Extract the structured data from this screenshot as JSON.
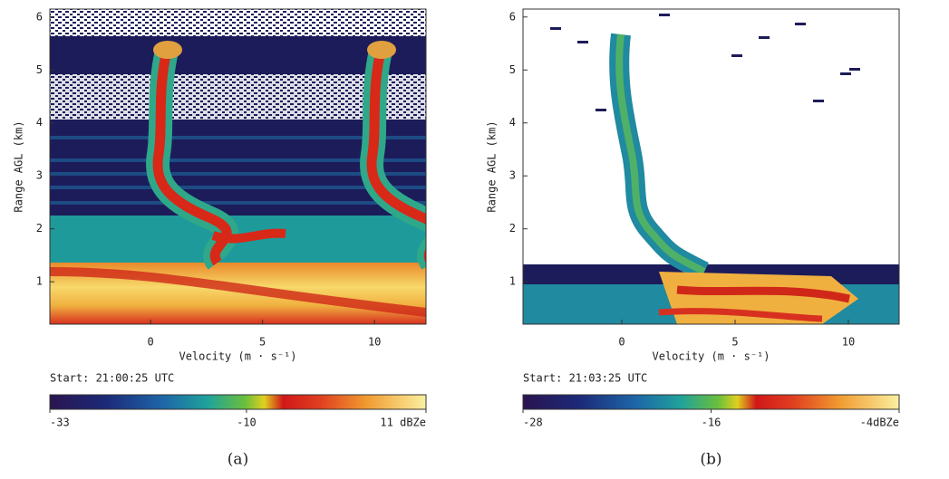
{
  "chart_data": [
    {
      "type": "spectrogram",
      "xlabel": "Velocity (m · s⁻¹)",
      "ylabel": "Range AGL (km)",
      "xlim": [
        -4.5,
        12.3
      ],
      "xticks": [
        0,
        5,
        10
      ],
      "ylim": [
        0.2,
        6.15
      ],
      "yticks": [
        1,
        2,
        3,
        4,
        5,
        6
      ],
      "start": "Start: 21:00:25 UTC",
      "colorbar": {
        "lim": [
          -33,
          11
        ],
        "ticks": [
          -33,
          -10,
          {
            "value": 11,
            "label": "11 dBZe"
          }
        ]
      },
      "caption": "(a)"
    },
    {
      "type": "spectrogram",
      "xlabel": "Velocity (m · s⁻¹)",
      "ylabel": "Range AGL (km)",
      "xlim": [
        -4.36,
        12.24
      ],
      "xticks": [
        0,
        5,
        10
      ],
      "ylim": [
        0.2,
        6.15
      ],
      "yticks": [
        1,
        2,
        3,
        4,
        5,
        6
      ],
      "start": "Start: 21:03:25 UTC",
      "colorbar": {
        "lim": [
          -28,
          -4
        ],
        "ticks": [
          -28,
          -16,
          {
            "value": -4,
            "label": "-4dBZe"
          }
        ]
      },
      "caption": "(b)"
    }
  ]
}
